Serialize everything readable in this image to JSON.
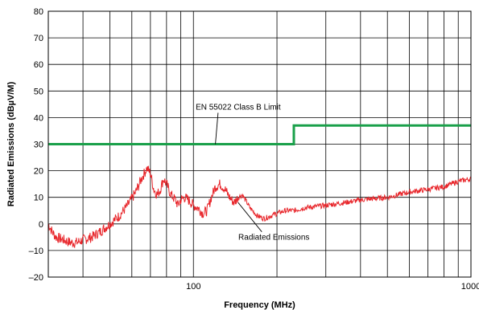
{
  "chart_data": {
    "type": "line",
    "title": "",
    "xlabel": "Frequency (MHz)",
    "ylabel": "Radiated Emissions (dBµV/M)",
    "xscale": "log",
    "xlim": [
      30,
      1000
    ],
    "ylim": [
      -20,
      80
    ],
    "grid": true,
    "x_tick_labels": [
      {
        "value": 100,
        "label": "100"
      },
      {
        "value": 1000,
        "label": "1000"
      }
    ],
    "y_tick_labels": [
      {
        "value": 80,
        "label": "80"
      },
      {
        "value": 70,
        "label": "70"
      },
      {
        "value": 60,
        "label": "60"
      },
      {
        "value": 50,
        "label": "50"
      },
      {
        "value": 40,
        "label": "40"
      },
      {
        "value": 30,
        "label": "30"
      },
      {
        "value": 20,
        "label": "20"
      },
      {
        "value": 10,
        "label": "10"
      },
      {
        "value": 0,
        "label": "0"
      },
      {
        "value": -10,
        "label": "–10"
      },
      {
        "value": -20,
        "label": "–20"
      }
    ],
    "series": [
      {
        "name": "EN 55022 Class B Limit",
        "color": "#1aa04a",
        "x": [
          30,
          230,
          230,
          1000
        ],
        "y": [
          30,
          30,
          37,
          37
        ]
      },
      {
        "name": "Radiated Emissions",
        "color": "#e8262b",
        "x": [
          30,
          31,
          32,
          34,
          36,
          38,
          40,
          43,
          46,
          50,
          54,
          58,
          62,
          65,
          68,
          70,
          72,
          74,
          76,
          78,
          80,
          83,
          86,
          88,
          90,
          93,
          96,
          100,
          104,
          108,
          112,
          116,
          120,
          125,
          130,
          135,
          140,
          145,
          150,
          160,
          170,
          180,
          190,
          200,
          215,
          230,
          250,
          300,
          350,
          400,
          500,
          600,
          700,
          800,
          900,
          1000
        ],
        "y": [
          0,
          -3,
          -5,
          -6,
          -7,
          -7,
          -6,
          -5,
          -3,
          0,
          3,
          7,
          12,
          17,
          21,
          19,
          13,
          11,
          13,
          17,
          15,
          11,
          9,
          7,
          9,
          10,
          9,
          7,
          6,
          4,
          5,
          10,
          14,
          15,
          13,
          10,
          8,
          10,
          11,
          6,
          3,
          2,
          3,
          4,
          5,
          5,
          6,
          7,
          8,
          9,
          10,
          12,
          13,
          14,
          16,
          17
        ]
      }
    ],
    "annotations": [
      {
        "text": "EN 55022 Class B Limit",
        "x": 145,
        "y": 43,
        "arrow_to": [
          120,
          30
        ]
      },
      {
        "text": "Radiated Emissions",
        "x": 195,
        "y": -6,
        "arrow_to": [
          145,
          8
        ]
      }
    ]
  }
}
